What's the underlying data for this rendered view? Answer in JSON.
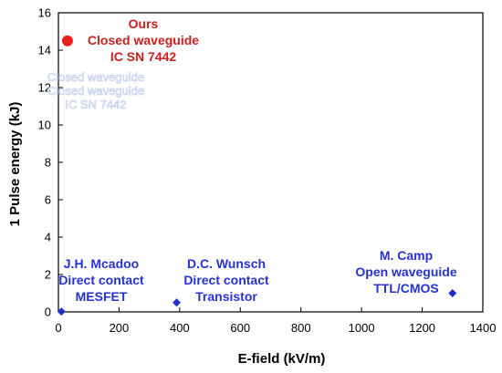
{
  "chart_data": {
    "type": "scatter",
    "title": "",
    "xlabel": "E-field (kV/m)",
    "ylabel": "1 Pulse energy (kJ)",
    "xlim": [
      0,
      1400
    ],
    "ylim": [
      0,
      16
    ],
    "xticks": [
      0,
      200,
      400,
      600,
      800,
      1000,
      1200,
      1400
    ],
    "yticks": [
      0,
      2,
      4,
      6,
      8,
      10,
      12,
      14,
      16
    ],
    "grid": false,
    "legend": "none",
    "series": [
      {
        "marker": "circle",
        "color": "#e8211d",
        "points": [
          {
            "x": 30,
            "y": 14.5
          }
        ]
      },
      {
        "marker": "diamond",
        "color": "#1f2fc9",
        "points": [
          {
            "x": 10,
            "y": 0.02
          },
          {
            "x": 390,
            "y": 0.5
          },
          {
            "x": 1300,
            "y": 1.0
          }
        ]
      }
    ],
    "annotations": [
      {
        "id": "ours",
        "color": "#c8211d",
        "anchor": "top-left",
        "lines": [
          "Ours",
          "Closed waveguide",
          "IC SN 7442"
        ]
      },
      {
        "id": "ours-ghost",
        "color": "#ffffff",
        "anchor": "top-left",
        "lines": [
          "Closed waveguide",
          "Closed waveguide",
          "IC SN 7442"
        ]
      },
      {
        "id": "mcadoo",
        "color": "#2632d0",
        "anchor": "bottom-left",
        "lines": [
          "J.H. Mcadoo",
          "Direct contact",
          "MESFET"
        ]
      },
      {
        "id": "wunsch",
        "color": "#2632d0",
        "anchor": "bottom-center",
        "lines": [
          "D.C. Wunsch",
          "Direct contact",
          "Transistor"
        ]
      },
      {
        "id": "camp",
        "color": "#2632d0",
        "anchor": "bottom-right",
        "lines": [
          "M. Camp",
          "Open waveguide",
          "TTL/CMOS"
        ]
      }
    ]
  }
}
